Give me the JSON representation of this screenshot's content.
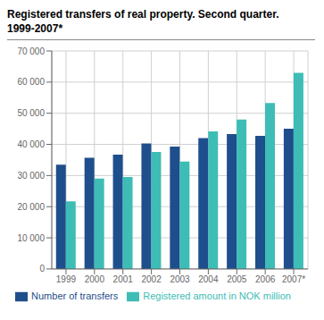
{
  "chart_data": {
    "type": "bar",
    "title": "Registered transfers of real property. Second quarter.",
    "subtitle": "1999-2007*",
    "categories": [
      "1999",
      "2000",
      "2001",
      "2002",
      "2003",
      "2004",
      "2005",
      "2006",
      "2007*"
    ],
    "series": [
      {
        "name": "Number of transfers",
        "color": "#1f4e8c",
        "values": [
          33500,
          35700,
          36700,
          40300,
          39300,
          42000,
          43300,
          42700,
          45000
        ]
      },
      {
        "name": "Registered amount in NOK million",
        "color": "#3dbdb5",
        "values": [
          21700,
          29000,
          29500,
          37600,
          34500,
          44200,
          48000,
          53300,
          63000
        ]
      }
    ],
    "ylim": [
      0,
      70000
    ],
    "yticks": [
      0,
      {
        "value": 10000,
        "label": "10 000"
      },
      {
        "value": 20000,
        "label": "20 000"
      },
      {
        "value": 30000,
        "label": "30 000"
      },
      {
        "value": 40000,
        "label": "40 000"
      },
      {
        "value": 50000,
        "label": "50 000"
      },
      {
        "value": 60000,
        "label": "60 000"
      },
      {
        "value": 70000,
        "label": "70 000"
      }
    ],
    "grid": true,
    "legend": "bottom"
  }
}
